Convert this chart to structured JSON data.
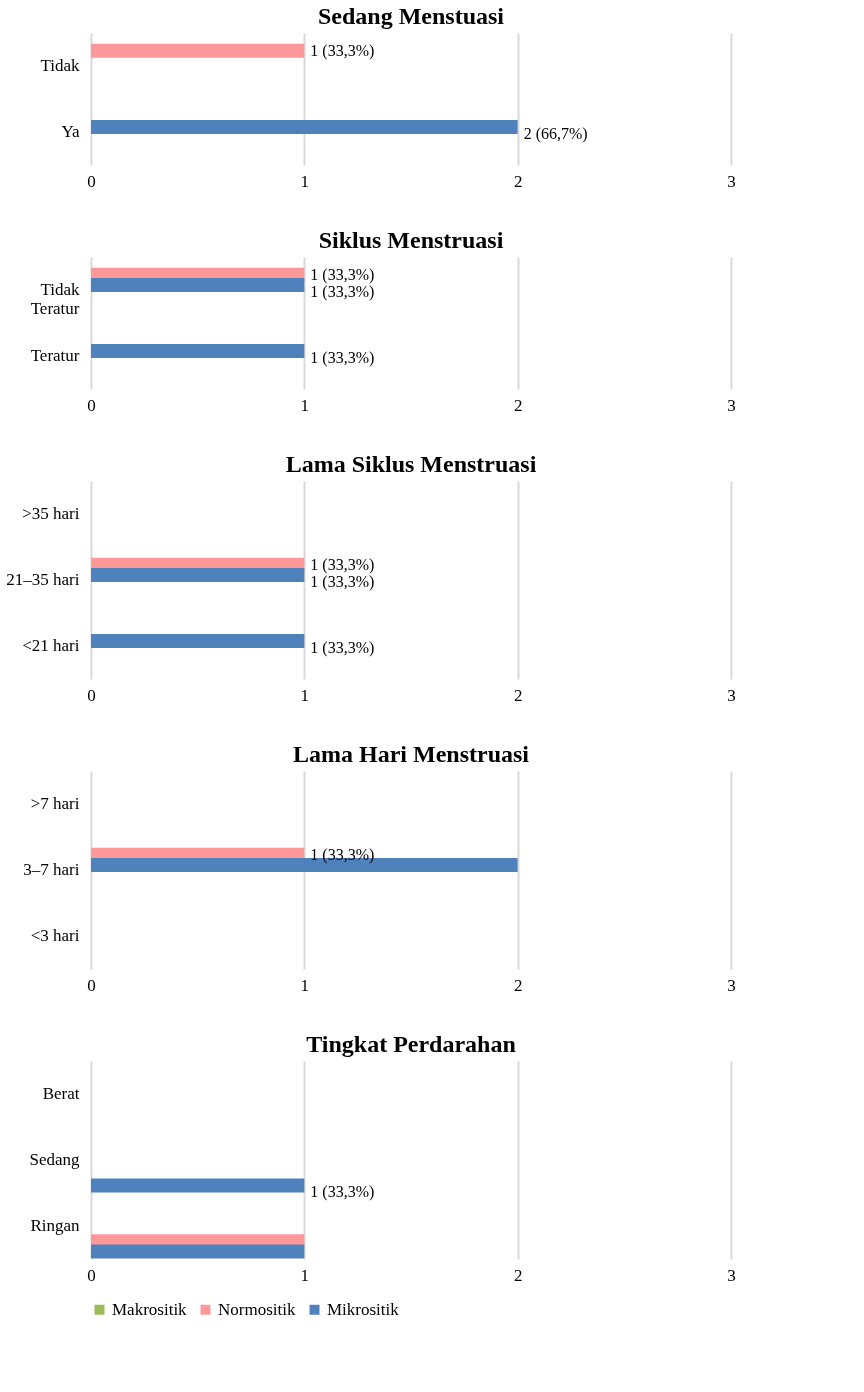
{
  "chart_data": [
    {
      "type": "bar",
      "orientation": "horizontal",
      "title": "Sedang Menstuasi",
      "categories": [
        "Tidak",
        "Ya"
      ],
      "xlim": [
        0,
        3
      ],
      "xticks": [
        0,
        1,
        2,
        3
      ],
      "grid": "x",
      "series": [
        {
          "color": "#9bbb59",
          "values": [
            null,
            null
          ],
          "value_labels": [
            null,
            null
          ]
        },
        {
          "color": "#ff9999",
          "values": [
            1,
            null
          ],
          "value_labels": [
            "1 (33,3%)",
            null
          ]
        },
        {
          "color": "#4f81bd",
          "values": [
            null,
            2
          ],
          "value_labels": [
            null,
            "2 (66,7%)"
          ]
        }
      ]
    },
    {
      "type": "bar",
      "orientation": "horizontal",
      "title": "Siklus Menstruasi",
      "categories": [
        "Tidak\nTeratur",
        "Teratur"
      ],
      "xlim": [
        0,
        3
      ],
      "xticks": [
        0,
        1,
        2,
        3
      ],
      "grid": "x",
      "series": [
        {
          "color": "#9bbb59",
          "values": [
            null,
            null
          ],
          "value_labels": [
            null,
            null
          ]
        },
        {
          "color": "#ff9999",
          "values": [
            1,
            null
          ],
          "value_labels": [
            "1 (33,3%)",
            null
          ]
        },
        {
          "color": "#4f81bd",
          "values": [
            1,
            1
          ],
          "value_labels": [
            "1 (33,3%)",
            "1 (33,3%)"
          ]
        }
      ]
    },
    {
      "type": "bar",
      "orientation": "horizontal",
      "title": "Lama Siklus Menstruasi",
      "categories": [
        ">35 hari",
        "21–35 hari",
        "<21 hari"
      ],
      "xlim": [
        0,
        3
      ],
      "xticks": [
        0,
        1,
        2,
        3
      ],
      "grid": "x",
      "series": [
        {
          "color": "#9bbb59",
          "values": [
            null,
            null,
            null
          ],
          "value_labels": [
            null,
            null,
            null
          ]
        },
        {
          "color": "#ff9999",
          "values": [
            null,
            1,
            null
          ],
          "value_labels": [
            null,
            "1 (33,3%)",
            null
          ]
        },
        {
          "color": "#4f81bd",
          "values": [
            null,
            1,
            1
          ],
          "value_labels": [
            null,
            "1 (33,3%)",
            "1 (33,3%)"
          ]
        }
      ]
    },
    {
      "type": "bar",
      "orientation": "horizontal",
      "title": "Lama Hari Menstruasi",
      "categories": [
        ">7 hari",
        "3–7 hari",
        "<3 hari"
      ],
      "xlim": [
        0,
        3
      ],
      "xticks": [
        0,
        1,
        2,
        3
      ],
      "grid": "x",
      "series": [
        {
          "color": "#9bbb59",
          "values": [
            null,
            null,
            null
          ],
          "value_labels": [
            null,
            null,
            null
          ]
        },
        {
          "color": "#ff9999",
          "values": [
            null,
            1,
            null
          ],
          "value_labels": [
            null,
            "1 (33,3%)",
            null
          ]
        },
        {
          "color": "#4f81bd",
          "values": [
            null,
            2,
            null
          ],
          "value_labels": [
            null,
            null,
            null
          ]
        }
      ]
    },
    {
      "type": "bar",
      "orientation": "horizontal",
      "title": "Tingkat Perdarahan",
      "categories": [
        "Berat",
        "Sedang",
        "Ringan"
      ],
      "xlim": [
        0,
        3
      ],
      "xticks": [
        0,
        1,
        2,
        3
      ],
      "grid": "x",
      "legend": "bottom",
      "series": [
        {
          "name": "Makrositik",
          "color": "#9bbb59",
          "values": [
            null,
            null,
            null
          ],
          "value_labels": [
            null,
            null,
            null
          ]
        },
        {
          "name": "Normositik",
          "color": "#ff9999",
          "values": [
            null,
            null,
            1
          ],
          "value_labels": [
            null,
            null,
            null
          ]
        },
        {
          "name": "Mikrositik",
          "color": "#4f81bd",
          "values": [
            null,
            1,
            1
          ],
          "value_labels": [
            null,
            "1 (33,3%)",
            null
          ]
        }
      ]
    }
  ]
}
